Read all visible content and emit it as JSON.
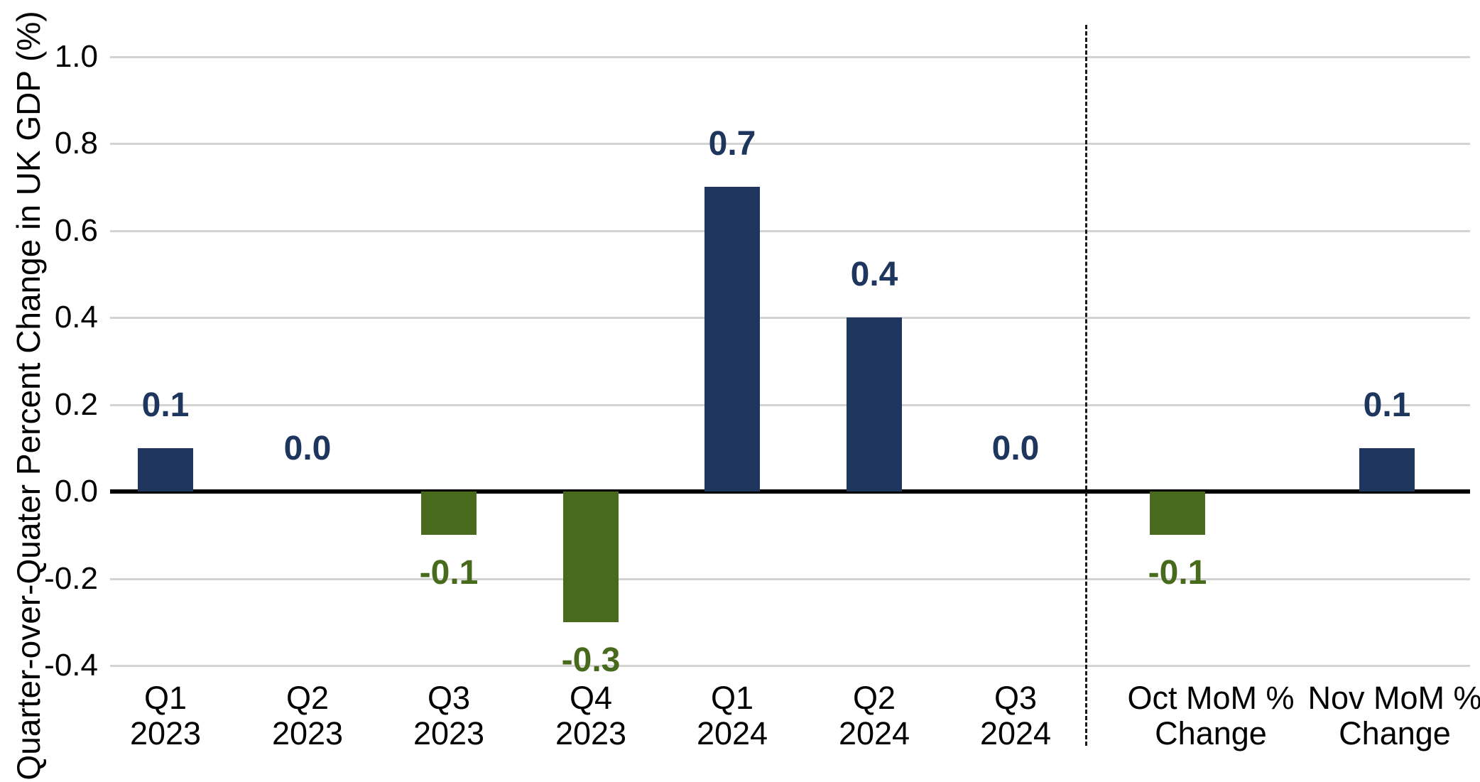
{
  "chart_data": {
    "type": "bar",
    "title": "",
    "ylabel": "Quarter-over-Quater Percent Change in UK GDP (%)",
    "xlabel": "",
    "ylim": [
      -0.4,
      1.0
    ],
    "ytick_step": 0.2,
    "grid": true,
    "legend": false,
    "yticks": [
      {
        "label": "1.0",
        "value": 1.0
      },
      {
        "label": "0.8",
        "value": 0.8
      },
      {
        "label": "0.6",
        "value": 0.6
      },
      {
        "label": "0.4",
        "value": 0.4
      },
      {
        "label": "0.2",
        "value": 0.2
      },
      {
        "label": "0.0",
        "value": 0.0
      },
      {
        "label": "-0.2",
        "value": -0.2
      },
      {
        "label": "-0.4",
        "value": -0.4
      }
    ],
    "categories": [
      {
        "line1": "Q1",
        "line2": "2023"
      },
      {
        "line1": "Q2",
        "line2": "2023"
      },
      {
        "line1": "Q3",
        "line2": "2023"
      },
      {
        "line1": "Q4",
        "line2": "2023"
      },
      {
        "line1": "Q1",
        "line2": "2024"
      },
      {
        "line1": "Q2",
        "line2": "2024"
      },
      {
        "line1": "Q3",
        "line2": "2024"
      },
      {
        "line1": "Oct MoM %",
        "line2": "Change"
      },
      {
        "line1": "Nov MoM %",
        "line2": "Change"
      }
    ],
    "values": [
      0.1,
      0.0,
      -0.1,
      -0.3,
      0.7,
      0.4,
      0.0,
      -0.1,
      0.1
    ],
    "value_labels": [
      "0.1",
      "0.0",
      "-0.1",
      "-0.3",
      "0.7",
      "0.4",
      "0.0",
      "-0.1",
      "0.1"
    ],
    "separator_after_index": 6,
    "colors": {
      "positive": "#1e355e",
      "negative": "#476a1c",
      "gridline": "#d3d3d3",
      "axis": "#000000",
      "separator": "#1a1a1a"
    }
  }
}
